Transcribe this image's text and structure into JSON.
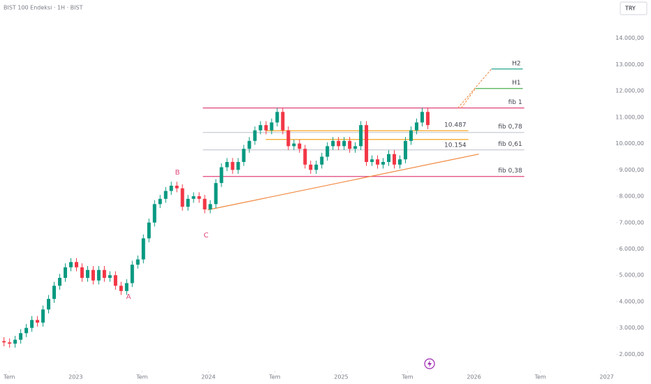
{
  "chart_data": {
    "type": "candlestick",
    "title": "BIST 100 Endeksi · 1H · BIST",
    "currency": "TRY",
    "up_color": "#089981",
    "down_color": "#f23645",
    "x": [
      2022.46,
      2022.502,
      2022.544,
      2022.586,
      2022.628,
      2022.67,
      2022.712,
      2022.754,
      2022.796,
      2022.838,
      2022.88,
      2022.922,
      2022.964,
      2023.006,
      2023.048,
      2023.09,
      2023.132,
      2023.174,
      2023.216,
      2023.258,
      2023.3,
      2023.342,
      2023.384,
      2023.426,
      2023.468,
      2023.51,
      2023.552,
      2023.594,
      2023.636,
      2023.678,
      2023.72,
      2023.762,
      2023.804,
      2023.846,
      2023.888,
      2023.93,
      2023.972,
      2024.014,
      2024.056,
      2024.098,
      2024.14,
      2024.182,
      2024.224,
      2024.266,
      2024.308,
      2024.35,
      2024.392,
      2024.434,
      2024.476,
      2024.518,
      2024.56,
      2024.602,
      2024.644,
      2024.686,
      2024.728,
      2024.77,
      2024.812,
      2024.854,
      2024.896,
      2024.938,
      2024.98,
      2025.022,
      2025.064,
      2025.106,
      2025.148,
      2025.19,
      2025.232,
      2025.274,
      2025.316,
      2025.358,
      2025.4,
      2025.442,
      2025.484,
      2025.526,
      2025.568,
      2025.61,
      2025.652
    ],
    "open": [
      2500,
      2450,
      2400,
      2550,
      2800,
      3000,
      3300,
      3200,
      3700,
      4100,
      4600,
      4900,
      5300,
      5500,
      5300,
      4900,
      5200,
      4800,
      5200,
      4900,
      5000,
      4600,
      4400,
      4700,
      5400,
      5600,
      6400,
      7000,
      7700,
      7900,
      8200,
      8400,
      8300,
      7600,
      7900,
      8000,
      7900,
      7500,
      7700,
      8500,
      9100,
      9300,
      9000,
      9300,
      9800,
      10100,
      10500,
      10700,
      10500,
      10800,
      11200,
      10500,
      9900,
      10000,
      9800,
      9200,
      9000,
      9200,
      9500,
      9900,
      10100,
      9900,
      10100,
      9800,
      9900,
      10700,
      9300,
      9400,
      9200,
      9300,
      9600,
      9200,
      9400,
      10100,
      10500,
      10800,
      11200
    ],
    "high": [
      2650,
      2600,
      2700,
      2950,
      3150,
      3450,
      3450,
      3850,
      4250,
      4750,
      5050,
      5450,
      5650,
      5650,
      5450,
      5350,
      5350,
      5350,
      5350,
      5150,
      5150,
      4750,
      4850,
      5550,
      5750,
      6550,
      7150,
      7850,
      8050,
      8350,
      8550,
      8550,
      8450,
      8050,
      8150,
      8150,
      8050,
      7850,
      8650,
      9250,
      9450,
      9450,
      9450,
      9950,
      10250,
      10650,
      10850,
      10850,
      10950,
      11350,
      11350,
      10650,
      10150,
      10150,
      9950,
      9350,
      9350,
      9650,
      10050,
      10250,
      10250,
      10250,
      10250,
      10050,
      10850,
      10850,
      9550,
      9550,
      9450,
      9750,
      9750,
      9550,
      10250,
      10650,
      10950,
      11350,
      11350
    ],
    "low": [
      2300,
      2250,
      2250,
      2400,
      2650,
      2850,
      3050,
      3050,
      3550,
      3950,
      4450,
      4750,
      5150,
      5150,
      4750,
      4750,
      4650,
      4650,
      4750,
      4750,
      4450,
      4250,
      4250,
      4550,
      5250,
      5450,
      6250,
      6850,
      7550,
      7750,
      8050,
      8150,
      7450,
      7450,
      7750,
      7750,
      7350,
      7350,
      7550,
      8350,
      8950,
      8850,
      8850,
      9150,
      9650,
      9950,
      10350,
      10350,
      10350,
      10650,
      10350,
      9750,
      9750,
      9650,
      9050,
      8850,
      8850,
      9050,
      9350,
      9750,
      9750,
      9750,
      9650,
      9650,
      9750,
      9150,
      9150,
      9050,
      9050,
      9150,
      9050,
      9050,
      9250,
      9950,
      10350,
      10650,
      10550
    ],
    "close": [
      2450,
      2400,
      2550,
      2800,
      3000,
      3300,
      3200,
      3700,
      4100,
      4600,
      4900,
      5300,
      5500,
      5300,
      4900,
      5200,
      4800,
      5200,
      4900,
      5000,
      4600,
      4400,
      4700,
      5400,
      5600,
      6400,
      7000,
      7700,
      7900,
      8200,
      8400,
      8300,
      7600,
      7900,
      8000,
      7900,
      7500,
      7700,
      8500,
      9100,
      9300,
      9000,
      9300,
      9800,
      10100,
      10500,
      10700,
      10500,
      10800,
      11200,
      10500,
      9900,
      10000,
      9800,
      9200,
      9000,
      9200,
      9500,
      9900,
      10100,
      9900,
      10100,
      9800,
      9900,
      10700,
      9300,
      9400,
      9200,
      9300,
      9600,
      9200,
      9400,
      10100,
      10500,
      10800,
      11200,
      10700
    ],
    "xlim": [
      2022.43,
      2027.06
    ],
    "ylim": [
      1400,
      15450
    ],
    "xticks": [
      {
        "value": 2022.5,
        "label": "Tem"
      },
      2023,
      {
        "value": 2023.5,
        "label": "Tem"
      },
      2024,
      {
        "value": 2024.5,
        "label": "Tem"
      },
      2025,
      {
        "value": 2025.5,
        "label": "Tem"
      },
      2026,
      {
        "value": 2026.5,
        "label": "Tem"
      },
      2027
    ],
    "yticks": [
      {
        "value": 2000,
        "label": "2.000,00"
      },
      {
        "value": 3000,
        "label": "3.000,00"
      },
      {
        "value": 4000,
        "label": "4.000,00"
      },
      {
        "value": 5000,
        "label": "5.000,00"
      },
      {
        "value": 6000,
        "label": "6.000,00"
      },
      {
        "value": 7000,
        "label": "7.000,00"
      },
      {
        "value": 8000,
        "label": "8.000,00"
      },
      {
        "value": 9000,
        "label": "9.000,00"
      },
      {
        "value": 10000,
        "label": "10.000,00"
      },
      {
        "value": 11000,
        "label": "11.000,00"
      },
      {
        "value": 12000,
        "label": "12.000,00"
      },
      {
        "value": 13000,
        "label": "13.000,00"
      },
      {
        "value": 14000,
        "label": "14.000,00"
      }
    ],
    "levels": [
      {
        "label": "fib 1",
        "value": 11350,
        "color": "#e0457b",
        "x": [
          2023.958,
          2026.379
        ]
      },
      {
        "label": "fib 0,78",
        "value": 10420,
        "color": "#c9ccd4",
        "x": [
          2023.958,
          2026.379
        ]
      },
      {
        "label": "fib 0,61",
        "value": 9760,
        "color": "#c9ccd4",
        "x": [
          2023.958,
          2026.379
        ]
      },
      {
        "label": "fib 0,38",
        "value": 8750,
        "color": "#e0457b",
        "x": [
          2023.958,
          2026.379
        ]
      },
      {
        "label": "H1",
        "value": 12090,
        "color": "#4caf50",
        "x": [
          2026.011,
          2026.368
        ]
      },
      {
        "label": "H2",
        "value": 12830,
        "color": "#089981",
        "x": [
          2026.132,
          2026.368
        ]
      }
    ],
    "price_lines": [
      {
        "label": "10.487",
        "value": 10487,
        "color": "#f5a623",
        "x": [
          2024.432,
          2025.958
        ]
      },
      {
        "label": "10.154",
        "value": 10154,
        "color": "#f5a623",
        "x": [
          2024.432,
          2025.958
        ]
      }
    ],
    "trendline": {
      "color": "#f0883e",
      "x": [
        2023.995,
        2026.037
      ],
      "values": [
        7480,
        9600
      ]
    },
    "projections": [
      {
        "x": [
          2025.879,
          2026.132
        ],
        "values": [
          11350,
          12830
        ]
      },
      {
        "x": [
          2025.905,
          2026.011
        ],
        "values": [
          11350,
          12090
        ]
      }
    ],
    "wave_labels": [
      "A",
      "B",
      "C"
    ]
  }
}
